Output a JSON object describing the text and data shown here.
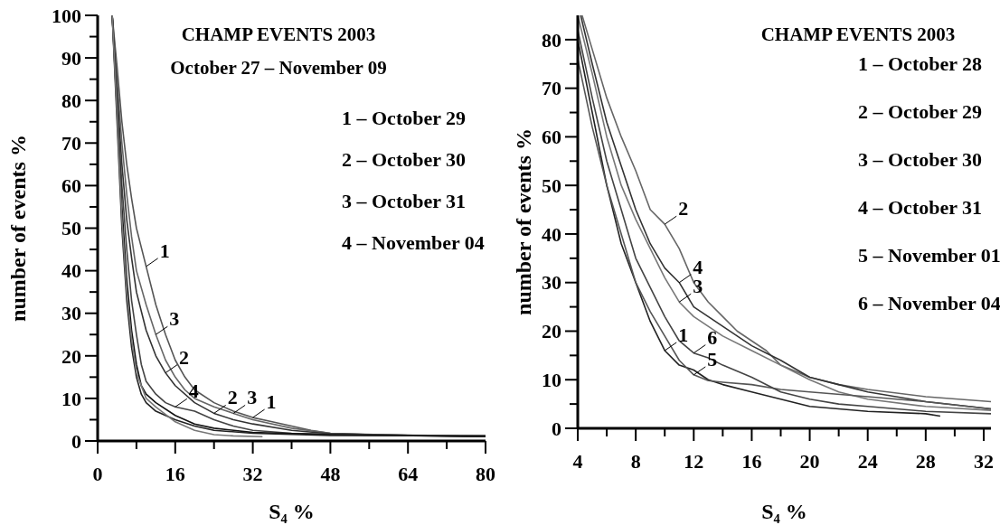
{
  "chart_data": [
    {
      "type": "line",
      "title": "CHAMP EVENTS 2003",
      "subtitle": "October 27 – November 09",
      "xlabel": "S₄ %",
      "ylabel": "number of events  %",
      "xlim": [
        0,
        80
      ],
      "ylim": [
        0,
        100
      ],
      "xticks": [
        0,
        {
          "value": 8,
          "label": null
        },
        16,
        {
          "value": 24,
          "label": null
        },
        32,
        {
          "value": 40,
          "label": null
        },
        48,
        {
          "value": 56,
          "label": null
        },
        64,
        {
          "value": 72,
          "label": null
        },
        80
      ],
      "yticks": [
        0,
        {
          "value": 5,
          "label": null
        },
        10,
        {
          "value": 15,
          "label": null
        },
        20,
        {
          "value": 25,
          "label": null
        },
        30,
        {
          "value": 35,
          "label": null
        },
        40,
        {
          "value": 45,
          "label": null
        },
        50,
        {
          "value": 55,
          "label": null
        },
        60,
        {
          "value": 65,
          "label": null
        },
        70,
        {
          "value": 75,
          "label": null
        },
        80,
        {
          "value": 85,
          "label": null
        },
        90,
        {
          "value": 95,
          "label": null
        },
        100
      ],
      "grid": false,
      "marker": "none",
      "line_style": "solid",
      "annotations": [
        "1 – October 29",
        "2 – October 30",
        "3 – October 31",
        "4 – November 04",
        {
          "text": "1",
          "x": 10,
          "y": 41
        },
        {
          "text": "3",
          "x": 12,
          "y": 25
        },
        {
          "text": "2",
          "x": 14,
          "y": 16
        },
        {
          "text": "4",
          "x": 16,
          "y": 8
        },
        {
          "text": "2",
          "x": 24,
          "y": 6.5
        },
        {
          "text": "3",
          "x": 28,
          "y": 6.5
        },
        {
          "text": "1",
          "x": 32,
          "y": 5.5
        }
      ],
      "series": [
        {
          "color": "#555555",
          "x": [
            3,
            4,
            5,
            6,
            7,
            8,
            10,
            12,
            14,
            16,
            18,
            20,
            24,
            28,
            32,
            36,
            40,
            44,
            48,
            56,
            64,
            80
          ],
          "values": [
            100,
            88,
            75,
            65,
            57,
            50,
            41,
            32,
            25,
            19,
            15,
            12,
            9,
            7,
            5.5,
            4.5,
            3.5,
            2.5,
            1.8,
            1.5,
            1.3,
            1.2
          ]
        },
        {
          "color": "#666666",
          "x": [
            3,
            4,
            5,
            6,
            7,
            8,
            10,
            12,
            14,
            16,
            18,
            20,
            24,
            28,
            32,
            40,
            48,
            64,
            80
          ],
          "values": [
            100,
            85,
            70,
            58,
            48,
            40,
            32,
            25,
            19,
            15,
            12,
            10,
            8,
            6.5,
            5,
            3,
            1.8,
            1.3,
            1
          ]
        },
        {
          "color": "#333333",
          "x": [
            3,
            4,
            5,
            6,
            7,
            8,
            10,
            12,
            14,
            16,
            20,
            24,
            28,
            32,
            40,
            48,
            80
          ],
          "values": [
            100,
            82,
            65,
            52,
            43,
            35,
            26,
            20,
            16,
            13,
            9,
            6.5,
            5,
            4,
            2.5,
            1.7,
            1
          ]
        },
        {
          "color": "#444444",
          "x": [
            3,
            4,
            5,
            6,
            7,
            8,
            9,
            10,
            12,
            14,
            16,
            20,
            24,
            28,
            32,
            40,
            56,
            80
          ],
          "values": [
            100,
            80,
            60,
            45,
            33,
            25,
            18,
            14,
            11,
            9,
            8,
            7,
            5,
            3.5,
            2.5,
            1.8,
            1.4,
            1.2
          ]
        },
        {
          "color": "#111111",
          "x": [
            3,
            4,
            5,
            6,
            7,
            8,
            9,
            10,
            12,
            16,
            20,
            24,
            32,
            48,
            80
          ],
          "values": [
            100,
            78,
            55,
            38,
            26,
            18,
            13,
            11,
            9,
            6,
            4,
            3,
            2,
            1.5,
            1
          ]
        },
        {
          "color": "#222222",
          "x": [
            3,
            4,
            5,
            6,
            7,
            8,
            9,
            10,
            12,
            16,
            20,
            24,
            32,
            48,
            80
          ],
          "values": [
            100,
            75,
            50,
            33,
            22,
            15,
            11,
            9,
            7,
            5,
            3.5,
            2.5,
            1.8,
            1.3,
            1.2
          ]
        },
        {
          "color": "#777777",
          "x": [
            3,
            4,
            5,
            6,
            7,
            8,
            10,
            12,
            16,
            20,
            24,
            28,
            34
          ],
          "values": [
            100,
            77,
            52,
            35,
            24,
            16,
            10,
            8,
            4.5,
            2.5,
            1.5,
            1.2,
            1
          ]
        }
      ]
    },
    {
      "type": "line",
      "title": "CHAMP EVENTS 2003",
      "xlabel": "S₄ %",
      "ylabel": "number of events  %",
      "xlim": [
        4,
        32.5
      ],
      "ylim": [
        0,
        85
      ],
      "xticks": [
        4,
        {
          "value": 6,
          "label": null
        },
        8,
        {
          "value": 10,
          "label": null
        },
        12,
        {
          "value": 14,
          "label": null
        },
        16,
        {
          "value": 18,
          "label": null
        },
        20,
        {
          "value": 22,
          "label": null
        },
        24,
        {
          "value": 26,
          "label": null
        },
        28,
        {
          "value": 30,
          "label": null
        },
        32
      ],
      "yticks": [
        0,
        {
          "value": 5,
          "label": null
        },
        10,
        {
          "value": 15,
          "label": null
        },
        20,
        {
          "value": 25,
          "label": null
        },
        30,
        {
          "value": 35,
          "label": null
        },
        40,
        {
          "value": 45,
          "label": null
        },
        50,
        {
          "value": 55,
          "label": null
        },
        60,
        {
          "value": 65,
          "label": null
        },
        70,
        {
          "value": 75,
          "label": null
        },
        80
      ],
      "grid": false,
      "marker": "none",
      "line_style": "solid",
      "annotations": [
        "1 – October 28",
        "2 – October 29",
        "3 – October 30",
        "4 – October 31",
        "5 – November 01",
        "6 – November 04",
        {
          "text": "1",
          "x": 10,
          "y": 16
        },
        {
          "text": "2",
          "x": 10,
          "y": 42
        },
        {
          "text": "3",
          "x": 11,
          "y": 26
        },
        {
          "text": "4",
          "x": 11,
          "y": 30
        },
        {
          "text": "5",
          "x": 12,
          "y": 11
        },
        {
          "text": "6",
          "x": 12,
          "y": 15.5
        }
      ],
      "series": [
        {
          "color": "#222222",
          "x": [
            4,
            5,
            6,
            7,
            8,
            9,
            10,
            11,
            12,
            13,
            14,
            16,
            18,
            20,
            24,
            28,
            29
          ],
          "values": [
            80,
            65,
            50,
            38,
            30,
            22,
            16,
            13,
            12,
            10,
            9,
            7.5,
            6,
            4.5,
            3.5,
            3,
            2.5
          ]
        },
        {
          "color": "#666666",
          "x": [
            4.3,
            5,
            6,
            7,
            8,
            9,
            10,
            11,
            12,
            13,
            14,
            15,
            16,
            17,
            18,
            20,
            22,
            24,
            28,
            32.5
          ],
          "values": [
            85,
            78,
            68,
            60,
            53,
            45,
            42,
            37,
            30,
            26,
            23,
            20,
            18,
            16,
            13,
            10.5,
            9,
            8,
            6.5,
            5.5
          ]
        },
        {
          "color": "#777777",
          "x": [
            4,
            5,
            6,
            7,
            8,
            9,
            10,
            11,
            12,
            13,
            14,
            16,
            18,
            20,
            22,
            24,
            28,
            32.5
          ],
          "values": [
            85,
            73,
            60,
            50,
            43,
            37,
            31,
            26,
            23,
            21,
            19,
            16,
            13,
            10,
            7.5,
            6,
            4.5,
            3.7
          ]
        },
        {
          "color": "#333333",
          "x": [
            4.2,
            5,
            6,
            7,
            8,
            9,
            10,
            11,
            12,
            13,
            14,
            15,
            16,
            17,
            18,
            20,
            22,
            24,
            28,
            32.5
          ],
          "values": [
            85,
            75,
            63,
            54,
            45,
            38,
            33,
            30,
            25,
            23,
            21,
            19,
            17,
            15.5,
            14,
            10.5,
            9,
            7.5,
            5.5,
            4
          ]
        },
        {
          "color": "#555555",
          "x": [
            4,
            5,
            6,
            7,
            8,
            9,
            10,
            11,
            12,
            13,
            14,
            16,
            18,
            20,
            24,
            28,
            32.5
          ],
          "values": [
            76,
            62,
            50,
            40,
            30,
            24,
            19,
            14,
            11,
            9.8,
            9.5,
            9,
            8,
            7.5,
            6.5,
            5.5,
            4
          ]
        },
        {
          "color": "#444444",
          "x": [
            4,
            5,
            6,
            7,
            8,
            9,
            10,
            11,
            12,
            13,
            14,
            16,
            18,
            20,
            22,
            24,
            28,
            32.5
          ],
          "values": [
            82,
            68,
            55,
            45,
            35,
            29,
            23,
            18,
            15.5,
            14.5,
            13,
            10.5,
            7.5,
            6,
            5,
            4.5,
            3.5,
            3
          ]
        }
      ]
    }
  ]
}
